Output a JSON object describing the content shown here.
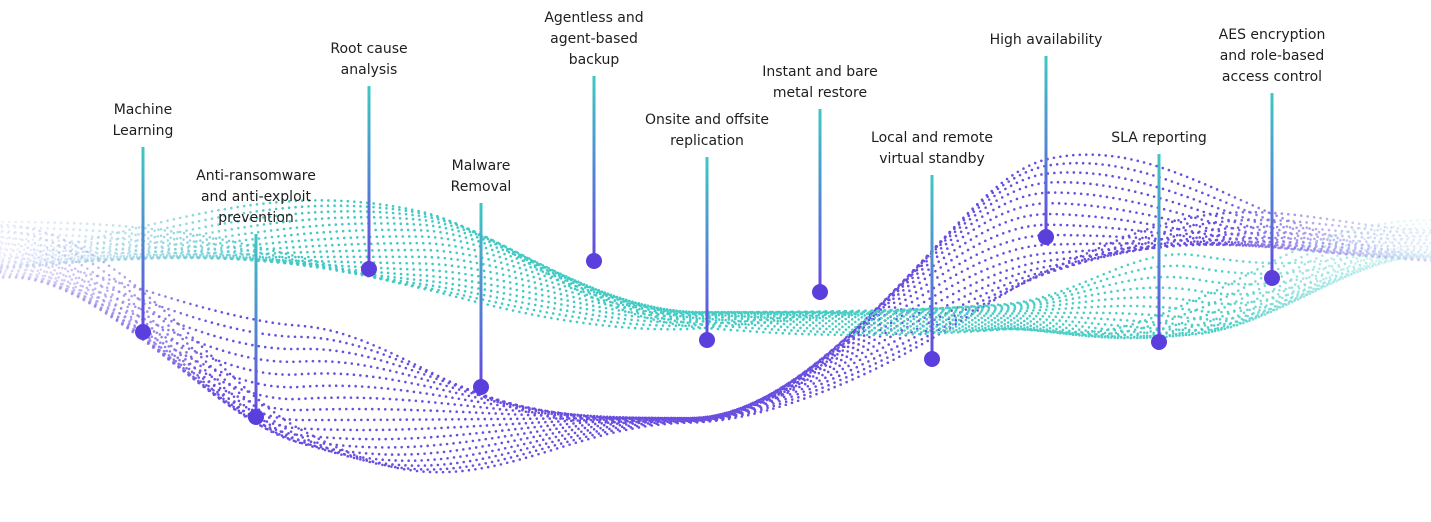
{
  "features": [
    {
      "label_lines": [
        "Machine",
        "Learning"
      ]
    },
    {
      "label_lines": [
        "Anti-ransomware",
        "and anti-exploit",
        "prevention"
      ]
    },
    {
      "label_lines": [
        "Root cause",
        "analysis"
      ]
    },
    {
      "label_lines": [
        "Malware",
        "Removal"
      ]
    },
    {
      "label_lines": [
        "Agentless and",
        "agent-based",
        "backup"
      ]
    },
    {
      "label_lines": [
        "Onsite and offsite",
        "replication"
      ]
    },
    {
      "label_lines": [
        "Instant and bare",
        "metal restore"
      ]
    },
    {
      "label_lines": [
        "Local and remote",
        "virtual standby"
      ]
    },
    {
      "label_lines": [
        "High availability"
      ]
    },
    {
      "label_lines": [
        "SLA reporting"
      ]
    },
    {
      "label_lines": [
        "AES encryption",
        "and role-based",
        "access control"
      ]
    }
  ]
}
